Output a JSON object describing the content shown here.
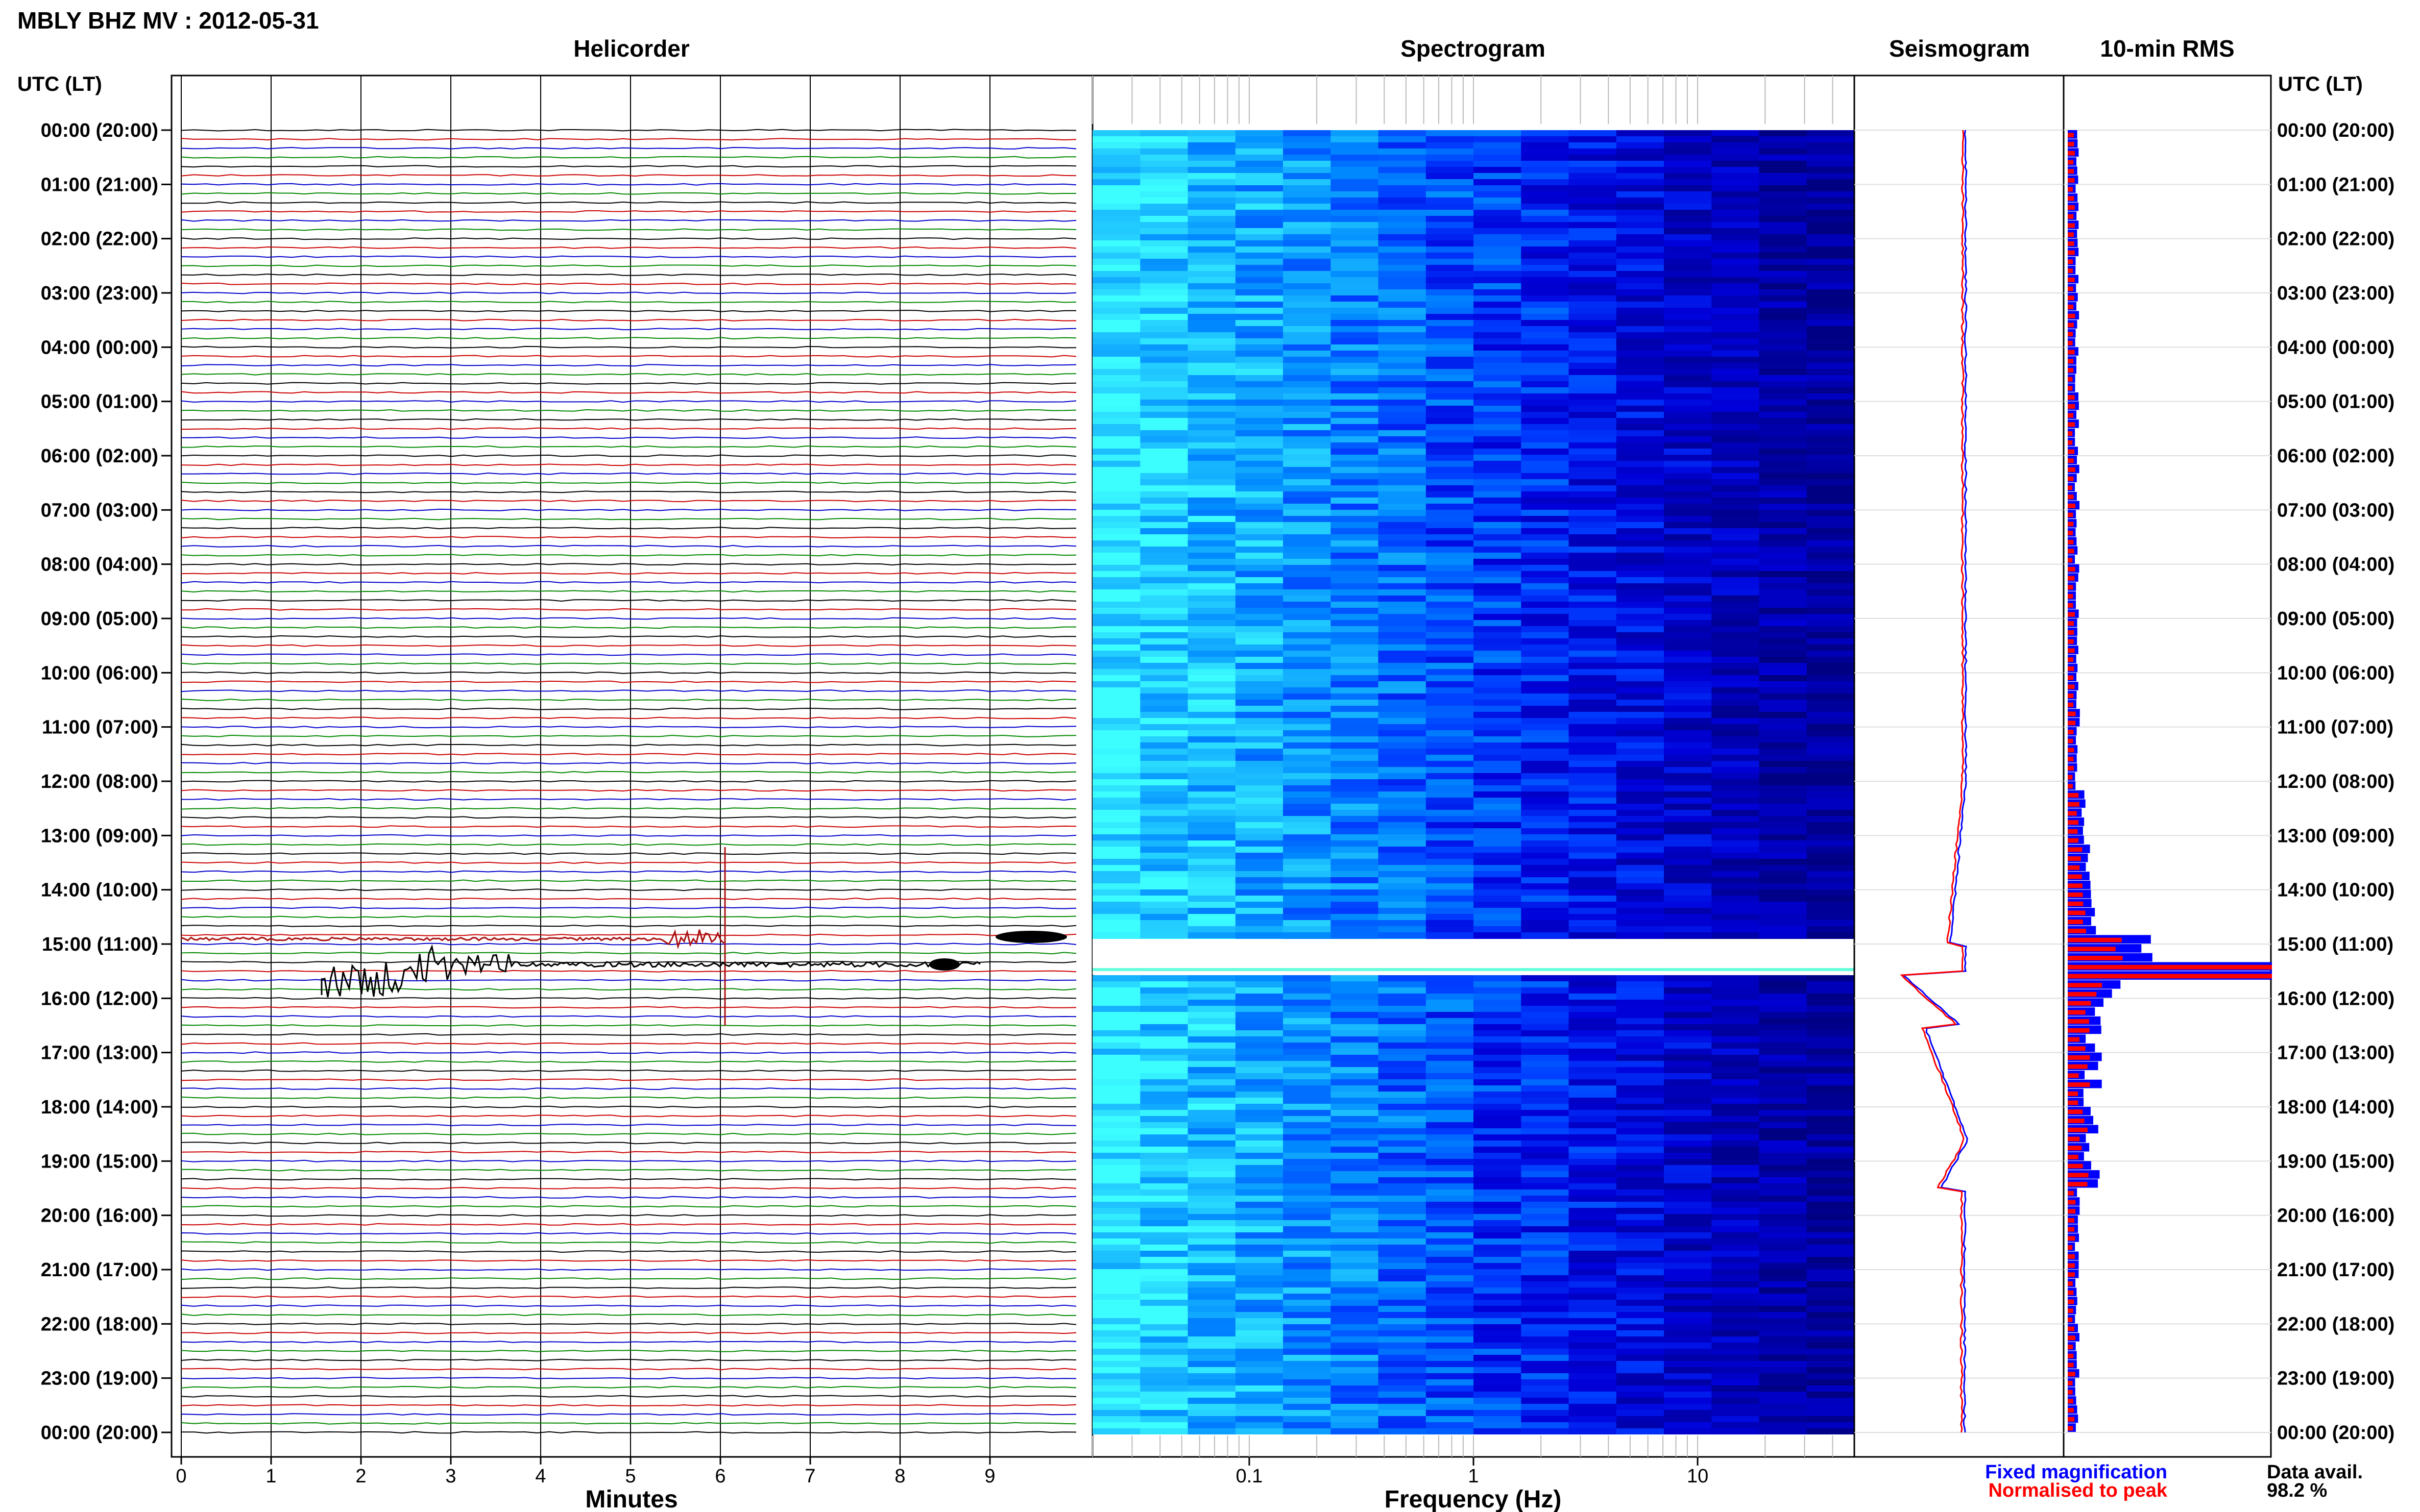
{
  "header": {
    "title": "MBLY BHZ MV : 2012-05-31",
    "panel_titles": [
      "Helicorder",
      "Spectrogram",
      "Seismogram",
      "10-min RMS"
    ]
  },
  "axes": {
    "left_label": "UTC (LT)",
    "right_label": "UTC (LT)",
    "helicorder_xlabel": "Minutes",
    "spectrogram_xlabel": "Frequency (Hz)"
  },
  "legend": {
    "fixed": "Fixed magnification",
    "normalised": "Normalised to peak",
    "fixed_color": "#0000ff",
    "normalised_color": "#ff0000"
  },
  "availability": {
    "label": "Data avail.",
    "value": "98.2 %"
  },
  "chart_data": [
    {
      "type": "line",
      "title": "Helicorder",
      "xlabel": "Minutes",
      "ylabel": "UTC (LT)",
      "xlim": [
        0,
        10
      ],
      "xticks": [
        "0",
        "1",
        "2",
        "3",
        "4",
        "5",
        "6",
        "7",
        "8",
        "9"
      ],
      "time_labels": [
        "00:00 (20:00)",
        "01:00 (21:00)",
        "02:00 (22:00)",
        "03:00 (23:00)",
        "04:00 (00:00)",
        "05:00 (01:00)",
        "06:00 (02:00)",
        "07:00 (03:00)",
        "08:00 (04:00)",
        "09:00 (05:00)",
        "10:00 (06:00)",
        "11:00 (07:00)",
        "12:00 (08:00)",
        "13:00 (09:00)",
        "14:00 (10:00)",
        "15:00 (11:00)",
        "16:00 (12:00)",
        "17:00 (13:00)",
        "18:00 (14:00)",
        "19:00 (15:00)",
        "20:00 (16:00)",
        "21:00 (17:00)",
        "22:00 (18:00)",
        "23:00 (19:00)",
        "00:00 (20:00)"
      ],
      "trace_colors": [
        "#000000",
        "#cc0000",
        "#0000cc",
        "#008800"
      ],
      "grid": true
    },
    {
      "type": "heatmap",
      "title": "Spectrogram",
      "xlabel": "Frequency (Hz)",
      "xscale": "log",
      "xlim": [
        0.02,
        50
      ],
      "xticks": [
        "0.1",
        "1",
        "10"
      ],
      "colormap": [
        "#000080",
        "#0000ff",
        "#0080ff",
        "#00ffff"
      ],
      "grid": true
    },
    {
      "type": "line",
      "title": "Seismogram",
      "series": [
        {
          "name": "Fixed magnification",
          "color": "#0000ff"
        },
        {
          "name": "Normalised to peak",
          "color": "#ff0000"
        }
      ]
    },
    {
      "type": "bar",
      "title": "10-min RMS",
      "series": [
        {
          "name": "Fixed magnification",
          "color": "#0000ff"
        },
        {
          "name": "Normalised to peak",
          "color": "#ff0000"
        }
      ]
    }
  ]
}
